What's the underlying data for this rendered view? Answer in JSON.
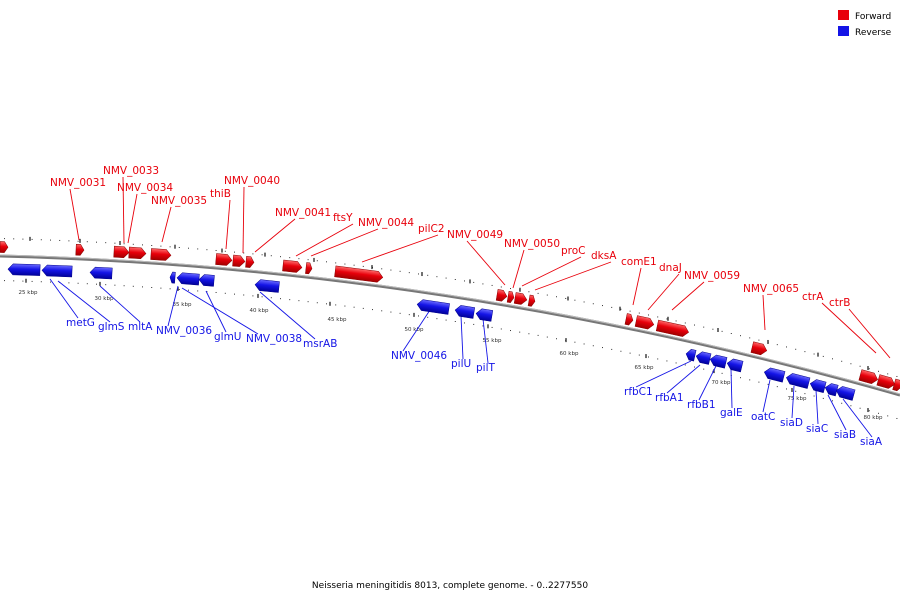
{
  "title": "Neisseria meningitidis 8013, complete genome. - 0..2277550",
  "legend": [
    {
      "label": "Forward",
      "color": "#e8000b"
    },
    {
      "label": "Reverse",
      "color": "#1414e6"
    }
  ],
  "colors": {
    "forward": "#e8000b",
    "reverse": "#1414e6",
    "backbone": "#777777"
  },
  "tick_labels": [
    "25 kbp",
    "30 kbp",
    "35 kbp",
    "40 kbp",
    "45 kbp",
    "50 kbp",
    "55 kbp",
    "60 kbp",
    "65 kbp",
    "70 kbp",
    "75 kbp",
    "80 kbp"
  ],
  "forward_genes": [
    "NMV_0031",
    "NMV_0033",
    "NMV_0034",
    "NMV_0035",
    "thiB",
    "NMV_0040",
    "NMV_0041",
    "ftsY",
    "NMV_0044",
    "pilC2",
    "NMV_0049",
    "NMV_0050",
    "proC",
    "dksA",
    "comE1",
    "dnaJ",
    "NMV_0059",
    "NMV_0065",
    "ctrA",
    "ctrB"
  ],
  "reverse_genes": [
    "metG",
    "glmS",
    "mltA",
    "NMV_0036",
    "glmU",
    "NMV_0038",
    "msrAB",
    "NMV_0046",
    "pilU",
    "pilT",
    "rfbC1",
    "rfbA1",
    "rfbB1",
    "galE",
    "oatC",
    "siaD",
    "siaC",
    "siaB",
    "siaA"
  ]
}
